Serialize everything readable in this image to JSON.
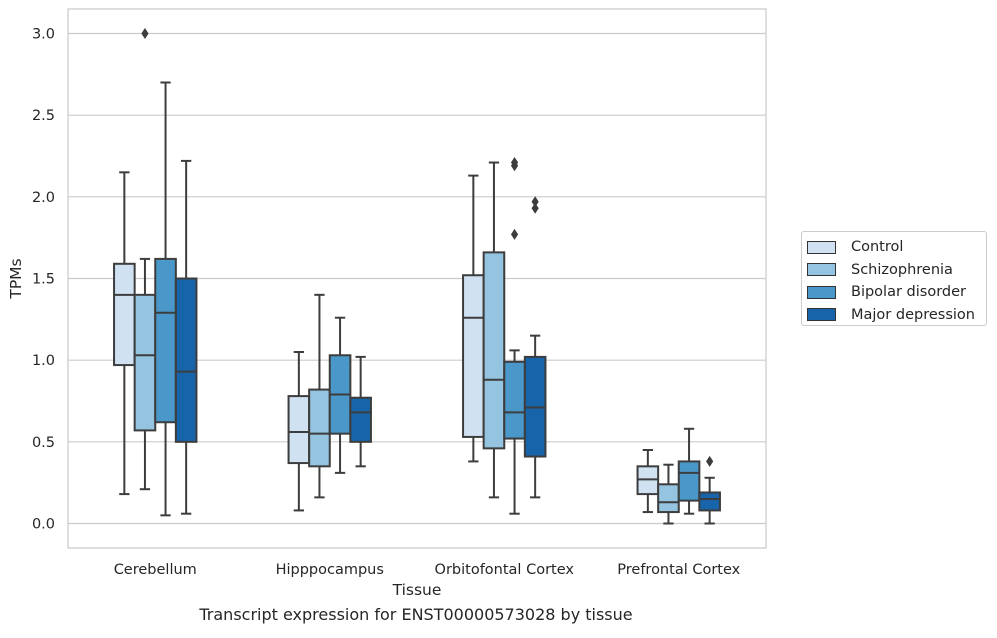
{
  "caption": "Transcript expression for ENST00000573028 by tissue",
  "chart_data": {
    "type": "boxplot",
    "xlabel": "Tissue",
    "ylabel": "TPMs",
    "ylim": [
      -0.15,
      3.15
    ],
    "yticks": [
      "0.0",
      "0.5",
      "1.0",
      "1.5",
      "2.0",
      "2.5",
      "3.0"
    ],
    "ytick_values": [
      0,
      0.5,
      1.0,
      1.5,
      2.0,
      2.5,
      3.0
    ],
    "grid": "horizontal",
    "legend_position": "right",
    "categories": [
      "Cerebellum",
      "Hipppocampus",
      "Orbitofontal Cortex",
      "Prefrontal Cortex"
    ],
    "series": [
      {
        "name": "Control",
        "color": "#d0e1f2",
        "boxes": [
          {
            "low": 0.18,
            "q1": 0.97,
            "median": 1.4,
            "q3": 1.59,
            "high": 2.15,
            "outliers": []
          },
          {
            "low": 0.08,
            "q1": 0.37,
            "median": 0.56,
            "q3": 0.78,
            "high": 1.05,
            "outliers": []
          },
          {
            "low": 0.38,
            "q1": 0.53,
            "median": 1.26,
            "q3": 1.52,
            "high": 2.13,
            "outliers": []
          },
          {
            "low": 0.07,
            "q1": 0.18,
            "median": 0.27,
            "q3": 0.35,
            "high": 0.45,
            "outliers": []
          }
        ]
      },
      {
        "name": "Schizophrenia",
        "color": "#94c4df",
        "boxes": [
          {
            "low": 0.21,
            "q1": 0.57,
            "median": 1.03,
            "q3": 1.4,
            "high": 1.62,
            "outliers": [
              3.0
            ]
          },
          {
            "low": 0.16,
            "q1": 0.35,
            "median": 0.55,
            "q3": 0.82,
            "high": 1.4,
            "outliers": []
          },
          {
            "low": 0.16,
            "q1": 0.46,
            "median": 0.88,
            "q3": 1.66,
            "high": 2.21,
            "outliers": []
          },
          {
            "low": 0.0,
            "q1": 0.07,
            "median": 0.13,
            "q3": 0.24,
            "high": 0.36,
            "outliers": []
          }
        ]
      },
      {
        "name": "Bipolar disorder",
        "color": "#4a98c9",
        "boxes": [
          {
            "low": 0.05,
            "q1": 0.62,
            "median": 1.29,
            "q3": 1.62,
            "high": 2.7,
            "outliers": []
          },
          {
            "low": 0.31,
            "q1": 0.55,
            "median": 0.79,
            "q3": 1.03,
            "high": 1.26,
            "outliers": []
          },
          {
            "low": 0.06,
            "q1": 0.52,
            "median": 0.68,
            "q3": 0.99,
            "high": 1.06,
            "outliers": [
              2.19,
              2.21,
              1.77
            ]
          },
          {
            "low": 0.06,
            "q1": 0.14,
            "median": 0.31,
            "q3": 0.38,
            "high": 0.58,
            "outliers": []
          }
        ]
      },
      {
        "name": "Major depression",
        "color": "#1764ab",
        "boxes": [
          {
            "low": 0.06,
            "q1": 0.5,
            "median": 0.93,
            "q3": 1.5,
            "high": 2.22,
            "outliers": []
          },
          {
            "low": 0.35,
            "q1": 0.5,
            "median": 0.68,
            "q3": 0.77,
            "high": 1.02,
            "outliers": []
          },
          {
            "low": 0.16,
            "q1": 0.41,
            "median": 0.71,
            "q3": 1.02,
            "high": 1.15,
            "outliers": [
              1.97,
              1.93
            ]
          },
          {
            "low": 0.0,
            "q1": 0.08,
            "median": 0.15,
            "q3": 0.19,
            "high": 0.28,
            "outliers": [
              0.38
            ]
          }
        ]
      }
    ]
  }
}
